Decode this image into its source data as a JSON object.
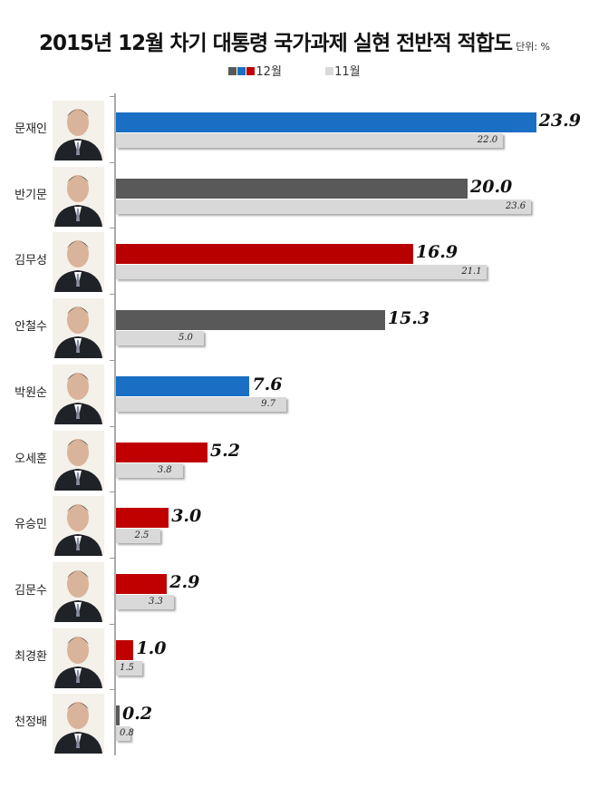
{
  "chart_data": {
    "type": "bar",
    "orientation": "horizontal",
    "title": "2015년 12월 차기 대통령 국가과제 실현 전반적 적합도",
    "unit": "단위: %",
    "legend_position": "top",
    "categories": [
      "문재인",
      "반기문",
      "김무성",
      "안철수",
      "박원순",
      "오세훈",
      "유승민",
      "김문수",
      "최경환",
      "천정배"
    ],
    "series": [
      {
        "name": "12월",
        "values": [
          23.9,
          20.0,
          16.9,
          15.3,
          7.6,
          5.2,
          3.0,
          2.9,
          1.0,
          0.2
        ],
        "colors": [
          "#1a6fc4",
          "#595959",
          "#b80000",
          "#595959",
          "#1a6fc4",
          "#c00000",
          "#c00000",
          "#c00000",
          "#c00000",
          "#595959"
        ]
      },
      {
        "name": "11월",
        "values": [
          22.0,
          23.6,
          21.1,
          5.0,
          9.7,
          3.8,
          2.5,
          3.3,
          1.5,
          0.8
        ],
        "color": "#d9d9d9"
      }
    ],
    "legend_swatches_12": [
      "#595959",
      "#1a6fc4",
      "#c00000"
    ],
    "xlim": [
      0,
      25
    ],
    "grid": false
  }
}
